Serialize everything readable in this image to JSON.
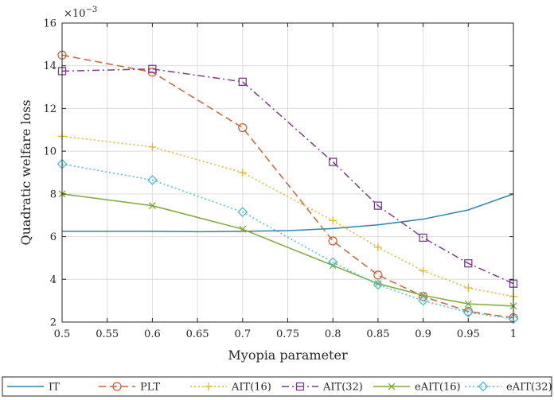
{
  "chart_data": {
    "type": "line",
    "title": "",
    "xlabel": "Myopia parameter",
    "ylabel": "Quadratic welfare loss",
    "exponent_label": "×10",
    "exponent_power": "−3",
    "xlim": [
      0.5,
      1.0
    ],
    "ylim": [
      2,
      16
    ],
    "x_ticks": [
      "0.5",
      "0.55",
      "0.6",
      "0.65",
      "0.7",
      "0.75",
      "0.8",
      "0.85",
      "0.9",
      "0.95",
      "1"
    ],
    "y_ticks": [
      "2",
      "4",
      "6",
      "8",
      "10",
      "12",
      "14",
      "16"
    ],
    "grid": true,
    "legend_position": "below",
    "series": [
      {
        "name": "IT",
        "color": "#2e86a8",
        "marker": "none",
        "dash": "solid",
        "x": [
          0.5,
          0.55,
          0.6,
          0.65,
          0.7,
          0.75,
          0.8,
          0.85,
          0.9,
          0.95,
          1.0
        ],
        "y": [
          6.25,
          6.25,
          6.25,
          6.23,
          6.25,
          6.28,
          6.38,
          6.55,
          6.82,
          7.25,
          8.0
        ]
      },
      {
        "name": "PLT",
        "color": "#c9643a",
        "marker": "circle",
        "dash": "dashed",
        "x": [
          0.5,
          0.6,
          0.7,
          0.8,
          0.85,
          0.9,
          0.95,
          1.0
        ],
        "y": [
          14.5,
          13.7,
          11.1,
          5.8,
          4.2,
          3.2,
          2.5,
          2.2
        ]
      },
      {
        "name": "AIT(16)",
        "color": "#e3b231",
        "marker": "plus",
        "dash": "dotted",
        "x": [
          0.5,
          0.6,
          0.7,
          0.8,
          0.85,
          0.9,
          0.95,
          1.0
        ],
        "y": [
          10.7,
          10.2,
          9.0,
          6.75,
          5.5,
          4.4,
          3.6,
          3.2
        ]
      },
      {
        "name": "AIT(32)",
        "color": "#7d3b8c",
        "marker": "square",
        "dash": "dashdot",
        "x": [
          0.5,
          0.6,
          0.7,
          0.8,
          0.85,
          0.9,
          0.95,
          1.0
        ],
        "y": [
          13.75,
          13.85,
          13.25,
          9.5,
          7.45,
          5.95,
          4.75,
          3.8
        ]
      },
      {
        "name": "eAIT(16)",
        "color": "#7fa83e",
        "marker": "x",
        "dash": "solid",
        "x": [
          0.5,
          0.6,
          0.7,
          0.8,
          0.85,
          0.9,
          0.95,
          1.0
        ],
        "y": [
          8.0,
          7.45,
          6.35,
          4.65,
          3.8,
          3.25,
          2.85,
          2.75
        ]
      },
      {
        "name": "eAIT(32)",
        "color": "#4fbcd8",
        "marker": "diamond",
        "dash": "dotted",
        "x": [
          0.5,
          0.6,
          0.7,
          0.8,
          0.85,
          0.9,
          0.95,
          1.0
        ],
        "y": [
          9.4,
          8.65,
          7.15,
          4.8,
          3.75,
          3.0,
          2.45,
          2.15
        ]
      }
    ]
  }
}
